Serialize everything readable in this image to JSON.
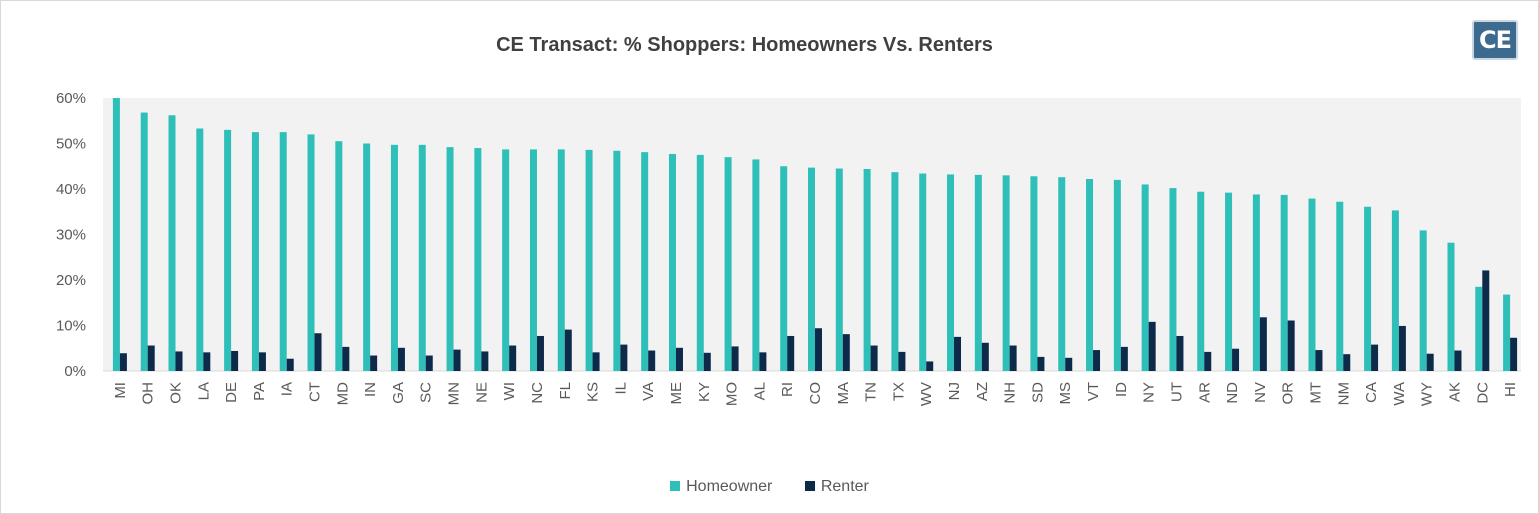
{
  "colors": {
    "homeowner": "#2ebfb8",
    "renter": "#0d2a4a",
    "plot_band": "#f2f2f2"
  },
  "logo": {
    "text": "CE"
  },
  "chart_data": {
    "type": "bar",
    "title": "CE Transact: % Shoppers: Homeowners Vs. Renters",
    "xlabel": "",
    "ylabel": "",
    "ylim": [
      0,
      60
    ],
    "yticks": [
      "0%",
      "10%",
      "20%",
      "30%",
      "40%",
      "50%",
      "60%"
    ],
    "grid": false,
    "legend_position": "bottom",
    "categories": [
      "MI",
      "OH",
      "OK",
      "LA",
      "DE",
      "PA",
      "IA",
      "CT",
      "MD",
      "IN",
      "GA",
      "SC",
      "MN",
      "NE",
      "WI",
      "NC",
      "FL",
      "KS",
      "IL",
      "VA",
      "ME",
      "KY",
      "MO",
      "AL",
      "RI",
      "CO",
      "MA",
      "TN",
      "TX",
      "WV",
      "NJ",
      "AZ",
      "NH",
      "SD",
      "MS",
      "VT",
      "ID",
      "NY",
      "UT",
      "AR",
      "ND",
      "NV",
      "OR",
      "MT",
      "NM",
      "CA",
      "WA",
      "WY",
      "AK",
      "DC",
      "HI"
    ],
    "series": [
      {
        "name": "Homeowner",
        "values": [
          60.0,
          56.8,
          56.2,
          53.3,
          53.0,
          52.5,
          52.5,
          52.0,
          50.5,
          50.0,
          49.7,
          49.7,
          49.2,
          49.0,
          48.7,
          48.7,
          48.7,
          48.6,
          48.4,
          48.1,
          47.7,
          47.5,
          47.0,
          46.5,
          45.0,
          44.7,
          44.5,
          44.4,
          43.7,
          43.4,
          43.2,
          43.1,
          43.0,
          42.8,
          42.6,
          42.2,
          42.0,
          41.0,
          40.2,
          39.4,
          39.2,
          38.8,
          38.7,
          37.9,
          37.2,
          36.1,
          35.3,
          30.9,
          28.2,
          18.5,
          16.8
        ]
      },
      {
        "name": "Renter",
        "values": [
          3.9,
          5.6,
          4.3,
          4.1,
          4.4,
          4.1,
          2.7,
          8.3,
          5.3,
          3.4,
          5.1,
          3.4,
          4.7,
          4.3,
          5.6,
          7.7,
          9.1,
          4.1,
          5.8,
          4.5,
          5.1,
          4.0,
          5.4,
          4.1,
          7.7,
          9.4,
          8.1,
          5.6,
          4.2,
          2.1,
          7.5,
          6.2,
          5.6,
          3.1,
          2.9,
          4.6,
          5.3,
          10.8,
          7.7,
          4.2,
          4.9,
          11.8,
          11.1,
          4.6,
          3.7,
          5.8,
          9.9,
          3.8,
          4.5,
          22.1,
          7.3
        ]
      }
    ]
  }
}
